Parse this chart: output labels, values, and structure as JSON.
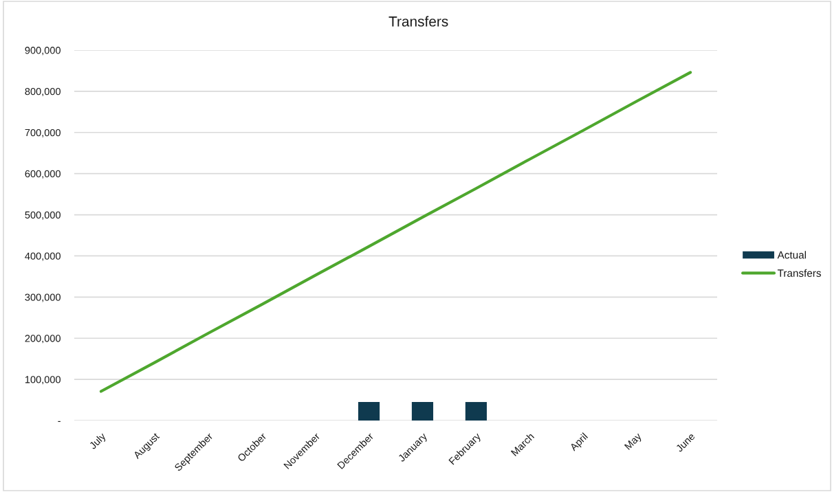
{
  "chart_data": {
    "type": "bar",
    "title": "Transfers",
    "categories": [
      "July",
      "August",
      "September",
      "October",
      "November",
      "December",
      "January",
      "February",
      "March",
      "April",
      "May",
      "June"
    ],
    "series": [
      {
        "name": "Actual",
        "color": "#0f3a4f",
        "values": [
          null,
          null,
          null,
          null,
          null,
          45000,
          45000,
          45000,
          null,
          null,
          null,
          null
        ]
      },
      {
        "name": "Transfers",
        "type": "line",
        "color": "#4ea72e",
        "values": [
          71000,
          141000,
          212000,
          282000,
          353000,
          423000,
          494000,
          564000,
          635000,
          705000,
          776000,
          846000
        ]
      }
    ],
    "ylim": [
      0,
      900000
    ],
    "yticks": [
      {
        "value": 0,
        "label": "-"
      },
      {
        "value": 100000,
        "label": "100,000"
      },
      {
        "value": 200000,
        "label": "200,000"
      },
      {
        "value": 300000,
        "label": "300,000"
      },
      {
        "value": 400000,
        "label": "400,000"
      },
      {
        "value": 500000,
        "label": "500,000"
      },
      {
        "value": 600000,
        "label": "600,000"
      },
      {
        "value": 700000,
        "label": "700,000"
      },
      {
        "value": 800000,
        "label": "800,000"
      },
      {
        "value": 900000,
        "label": "900,000"
      }
    ],
    "grid": "y",
    "legend": "right",
    "marker": "none",
    "line_style": "solid"
  }
}
